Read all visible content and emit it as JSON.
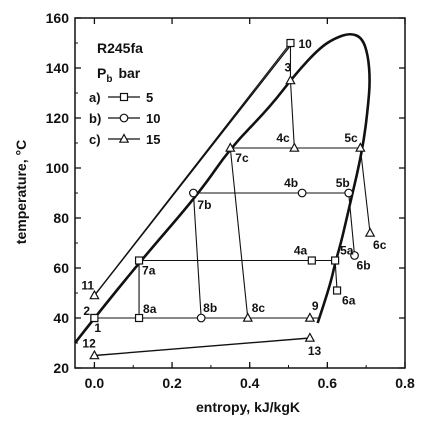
{
  "chart_data": {
    "type": "line",
    "title": "",
    "xlabel": "entropy, kJ/kgK",
    "ylabel": "temperature, °C",
    "xlim": [
      -0.05,
      0.8
    ],
    "ylim": [
      20,
      160
    ],
    "xticks": [
      "0.0",
      "0.2",
      "0.4",
      "0.6",
      "0.8"
    ],
    "xtick_values": [
      0.0,
      0.2,
      0.4,
      0.6,
      0.8
    ],
    "yticks": [
      "20",
      "40",
      "60",
      "80",
      "100",
      "120",
      "140",
      "160"
    ],
    "ytick_values": [
      20,
      40,
      60,
      80,
      100,
      120,
      140,
      160
    ],
    "annotation_fluid": "R245fa",
    "annotation_pb_main": "P",
    "annotation_pb_sub": "b",
    "annotation_pb_unit": "bar",
    "legend": [
      {
        "prefix": "a)",
        "marker": "square",
        "label": "5"
      },
      {
        "prefix": "b)",
        "marker": "circle",
        "label": "10"
      },
      {
        "prefix": "c)",
        "marker": "triangle",
        "label": "15"
      }
    ],
    "saturation_dome": {
      "x": [
        -0.05,
        0.0,
        0.12,
        0.27,
        0.35,
        0.45,
        0.52,
        0.58,
        0.62,
        0.66,
        0.69,
        0.705,
        0.71,
        0.705,
        0.695,
        0.68,
        0.665,
        0.65,
        0.635,
        0.62,
        0.61,
        0.59,
        0.575
      ],
      "y": [
        30,
        40,
        63,
        90,
        108,
        124,
        138,
        148,
        152,
        154,
        152,
        145,
        135,
        125,
        112,
        100,
        90,
        80,
        70,
        62,
        55,
        45,
        38
      ]
    },
    "subcooled_line": {
      "x": [
        0.0,
        0.51
      ],
      "y": [
        49,
        150
      ]
    },
    "pump_line": {
      "x": [
        0.0,
        0.555
      ],
      "y": [
        25,
        32
      ]
    },
    "series": [
      {
        "name": "a)",
        "marker": "square",
        "points": [
          {
            "label": "1",
            "x": 0.0,
            "y": 40
          },
          {
            "label": "7a",
            "x": 0.115,
            "y": 63
          },
          {
            "label": "4a",
            "x": 0.56,
            "y": 63
          },
          {
            "label": "5a",
            "x": 0.62,
            "y": 63
          },
          {
            "label": "6a",
            "x": 0.625,
            "y": 51
          },
          {
            "label": "8a",
            "x": 0.115,
            "y": 40
          }
        ]
      },
      {
        "name": "b)",
        "marker": "circle",
        "points": [
          {
            "label": "7b",
            "x": 0.255,
            "y": 90
          },
          {
            "label": "4b",
            "x": 0.535,
            "y": 90
          },
          {
            "label": "5b",
            "x": 0.655,
            "y": 90
          },
          {
            "label": "6b",
            "x": 0.67,
            "y": 65
          },
          {
            "label": "8b",
            "x": 0.275,
            "y": 40
          }
        ]
      },
      {
        "name": "c)",
        "marker": "triangle",
        "points": [
          {
            "label": "7c",
            "x": 0.35,
            "y": 108
          },
          {
            "label": "4c",
            "x": 0.515,
            "y": 108
          },
          {
            "label": "5c",
            "x": 0.685,
            "y": 108
          },
          {
            "label": "6c",
            "x": 0.71,
            "y": 74
          },
          {
            "label": "8c",
            "x": 0.395,
            "y": 40
          }
        ]
      }
    ],
    "extra_points": [
      {
        "label": "2",
        "x": 0.0,
        "y": 40,
        "marker": "square"
      },
      {
        "label": "3",
        "x": 0.505,
        "y": 135,
        "marker": "triangle"
      },
      {
        "label": "9",
        "x": 0.555,
        "y": 40,
        "marker": "triangle"
      },
      {
        "label": "10",
        "x": 0.505,
        "y": 150,
        "marker": "square"
      },
      {
        "label": "11",
        "x": 0.0,
        "y": 49,
        "marker": "triangle"
      },
      {
        "label": "12",
        "x": 0.0,
        "y": 25,
        "marker": "triangle"
      },
      {
        "label": "13",
        "x": 0.555,
        "y": 32,
        "marker": "triangle"
      }
    ],
    "connections": [
      {
        "from": [
          0.115,
          63
        ],
        "to": [
          0.62,
          63
        ]
      },
      {
        "from": [
          0.62,
          63
        ],
        "to": [
          0.625,
          51
        ]
      },
      {
        "from": [
          0.115,
          63
        ],
        "to": [
          0.115,
          40
        ]
      },
      {
        "from": [
          0.255,
          90
        ],
        "to": [
          0.655,
          90
        ]
      },
      {
        "from": [
          0.655,
          90
        ],
        "to": [
          0.67,
          65
        ]
      },
      {
        "from": [
          0.255,
          90
        ],
        "to": [
          0.275,
          40
        ]
      },
      {
        "from": [
          0.35,
          108
        ],
        "to": [
          0.685,
          108
        ]
      },
      {
        "from": [
          0.685,
          108
        ],
        "to": [
          0.71,
          74
        ]
      },
      {
        "from": [
          0.35,
          108
        ],
        "to": [
          0.395,
          40
        ]
      },
      {
        "from": [
          0.0,
          40
        ],
        "to": [
          0.58,
          40
        ]
      },
      {
        "from": [
          0.505,
          135
        ],
        "to": [
          0.515,
          108
        ]
      },
      {
        "from": [
          0.0,
          49
        ],
        "to": [
          0.505,
          150
        ]
      },
      {
        "from": [
          0.505,
          150
        ],
        "to": [
          0.505,
          135
        ]
      }
    ],
    "grid": false,
    "legend_position": "top-left"
  }
}
